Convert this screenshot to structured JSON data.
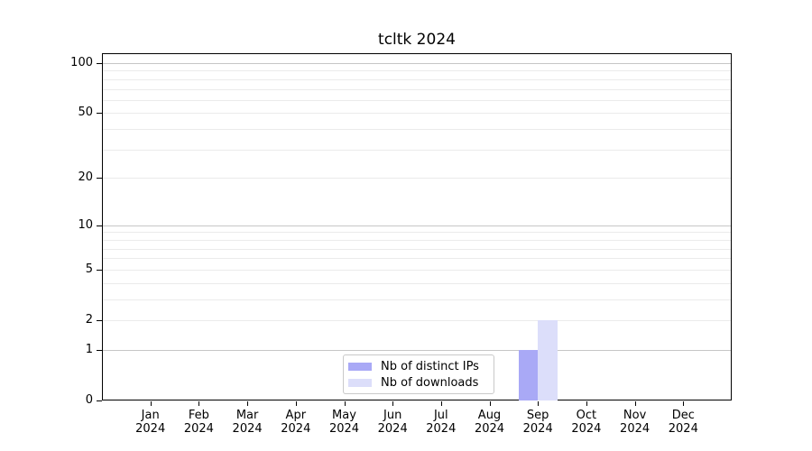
{
  "figure": {
    "background": "#ffffff"
  },
  "chart_data": {
    "type": "bar",
    "title": "tcltk 2024",
    "categories": [
      "Jan 2024",
      "Feb 2024",
      "Mar 2024",
      "Apr 2024",
      "May 2024",
      "Jun 2024",
      "Jul 2024",
      "Aug 2024",
      "Sep 2024",
      "Oct 2024",
      "Nov 2024",
      "Dec 2024"
    ],
    "series": [
      {
        "name": "Nb of distinct IPs",
        "color": "#a9a9f6",
        "values": [
          0,
          0,
          0,
          0,
          0,
          0,
          0,
          0,
          1,
          0,
          0,
          0
        ]
      },
      {
        "name": "Nb of downloads",
        "color": "#dcdefa",
        "values": [
          0,
          0,
          0,
          0,
          0,
          0,
          0,
          0,
          2,
          0,
          0,
          0
        ]
      }
    ],
    "yscale": "log1p",
    "ylim": [
      0,
      100
    ],
    "ytick_values": [
      0,
      1,
      2,
      5,
      10,
      20,
      50,
      100
    ],
    "ytick_labels": [
      "0",
      "1",
      "2",
      "5",
      "10",
      "20",
      "50",
      "100"
    ],
    "grid": {
      "on": true,
      "strong_values": [
        1,
        10,
        100
      ],
      "light_values": [
        2,
        3,
        4,
        5,
        6,
        7,
        8,
        9,
        20,
        30,
        40,
        50,
        60,
        70,
        80,
        90
      ],
      "strong_color": "#c6c6c6",
      "light_color": "#ebebeb"
    },
    "legend": {
      "position": "lower center"
    },
    "axis_color": "#000000"
  }
}
